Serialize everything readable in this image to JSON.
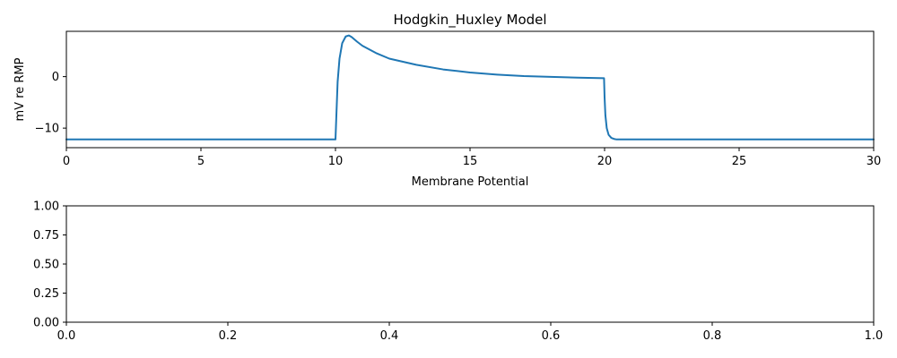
{
  "chart_data": [
    {
      "type": "line",
      "title": "Hodgkin_Huxley Model",
      "xlabel": "Membrane Potential",
      "ylabel": "mV re RMP",
      "xlim": [
        0,
        30
      ],
      "ylim": [
        -13.8,
        8.8
      ],
      "xticks": [
        "0",
        "5",
        "10",
        "15",
        "20",
        "25",
        "30"
      ],
      "yticks": [
        "−10",
        "0"
      ],
      "grid": false,
      "color": "#1f77b4",
      "series": [
        {
          "x": [
            0,
            10.0,
            10.03,
            10.08,
            10.15,
            10.25,
            10.38,
            10.5,
            10.6,
            10.8,
            11.0,
            11.5,
            12.0,
            13.0,
            14.0,
            15.0,
            16.0,
            17.0,
            18.0,
            19.0,
            19.98,
            20.0,
            20.03,
            20.08,
            20.15,
            20.25,
            20.35,
            20.45,
            20.6,
            20.8,
            21.0,
            30.0
          ],
          "y": [
            -12.2,
            -12.2,
            -8.0,
            -1.0,
            3.5,
            6.5,
            7.8,
            8.0,
            7.7,
            6.8,
            6.0,
            4.6,
            3.5,
            2.3,
            1.4,
            0.8,
            0.4,
            0.1,
            -0.05,
            -0.2,
            -0.3,
            -4.0,
            -7.5,
            -10.0,
            -11.3,
            -11.9,
            -12.1,
            -12.2,
            -12.2,
            -12.2,
            -12.2,
            -12.2
          ]
        }
      ]
    },
    {
      "type": "line",
      "title": "",
      "xlabel": "",
      "ylabel": "",
      "xlim": [
        0,
        1
      ],
      "ylim": [
        0,
        1
      ],
      "xticks": [
        "0.0",
        "0.2",
        "0.4",
        "0.6",
        "0.8",
        "1.0"
      ],
      "yticks": [
        "0.00",
        "0.25",
        "0.50",
        "0.75",
        "1.00"
      ],
      "grid": false,
      "series": []
    }
  ]
}
